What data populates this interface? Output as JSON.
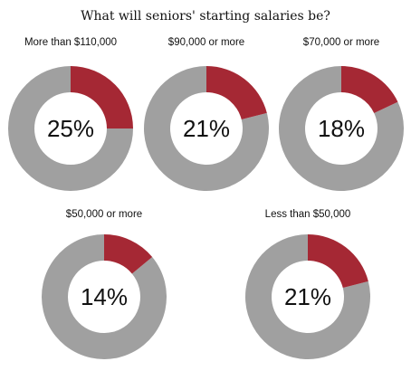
{
  "chart_data": {
    "type": "pie",
    "title": "What will seniors' starting salaries be?",
    "colors": {
      "highlight": "#A52834",
      "remainder": "#A0A0A0"
    },
    "slices": [
      {
        "label": "More than $110,000",
        "value": 25,
        "display": "25%"
      },
      {
        "label": "$90,000 or more",
        "value": 21,
        "display": "21%"
      },
      {
        "label": "$70,000 or more",
        "value": 18,
        "display": "18%"
      },
      {
        "label": "$50,000 or more",
        "value": 14,
        "display": "14%"
      },
      {
        "label": "Less than $50,000",
        "value": 21,
        "display": "21%"
      }
    ]
  }
}
